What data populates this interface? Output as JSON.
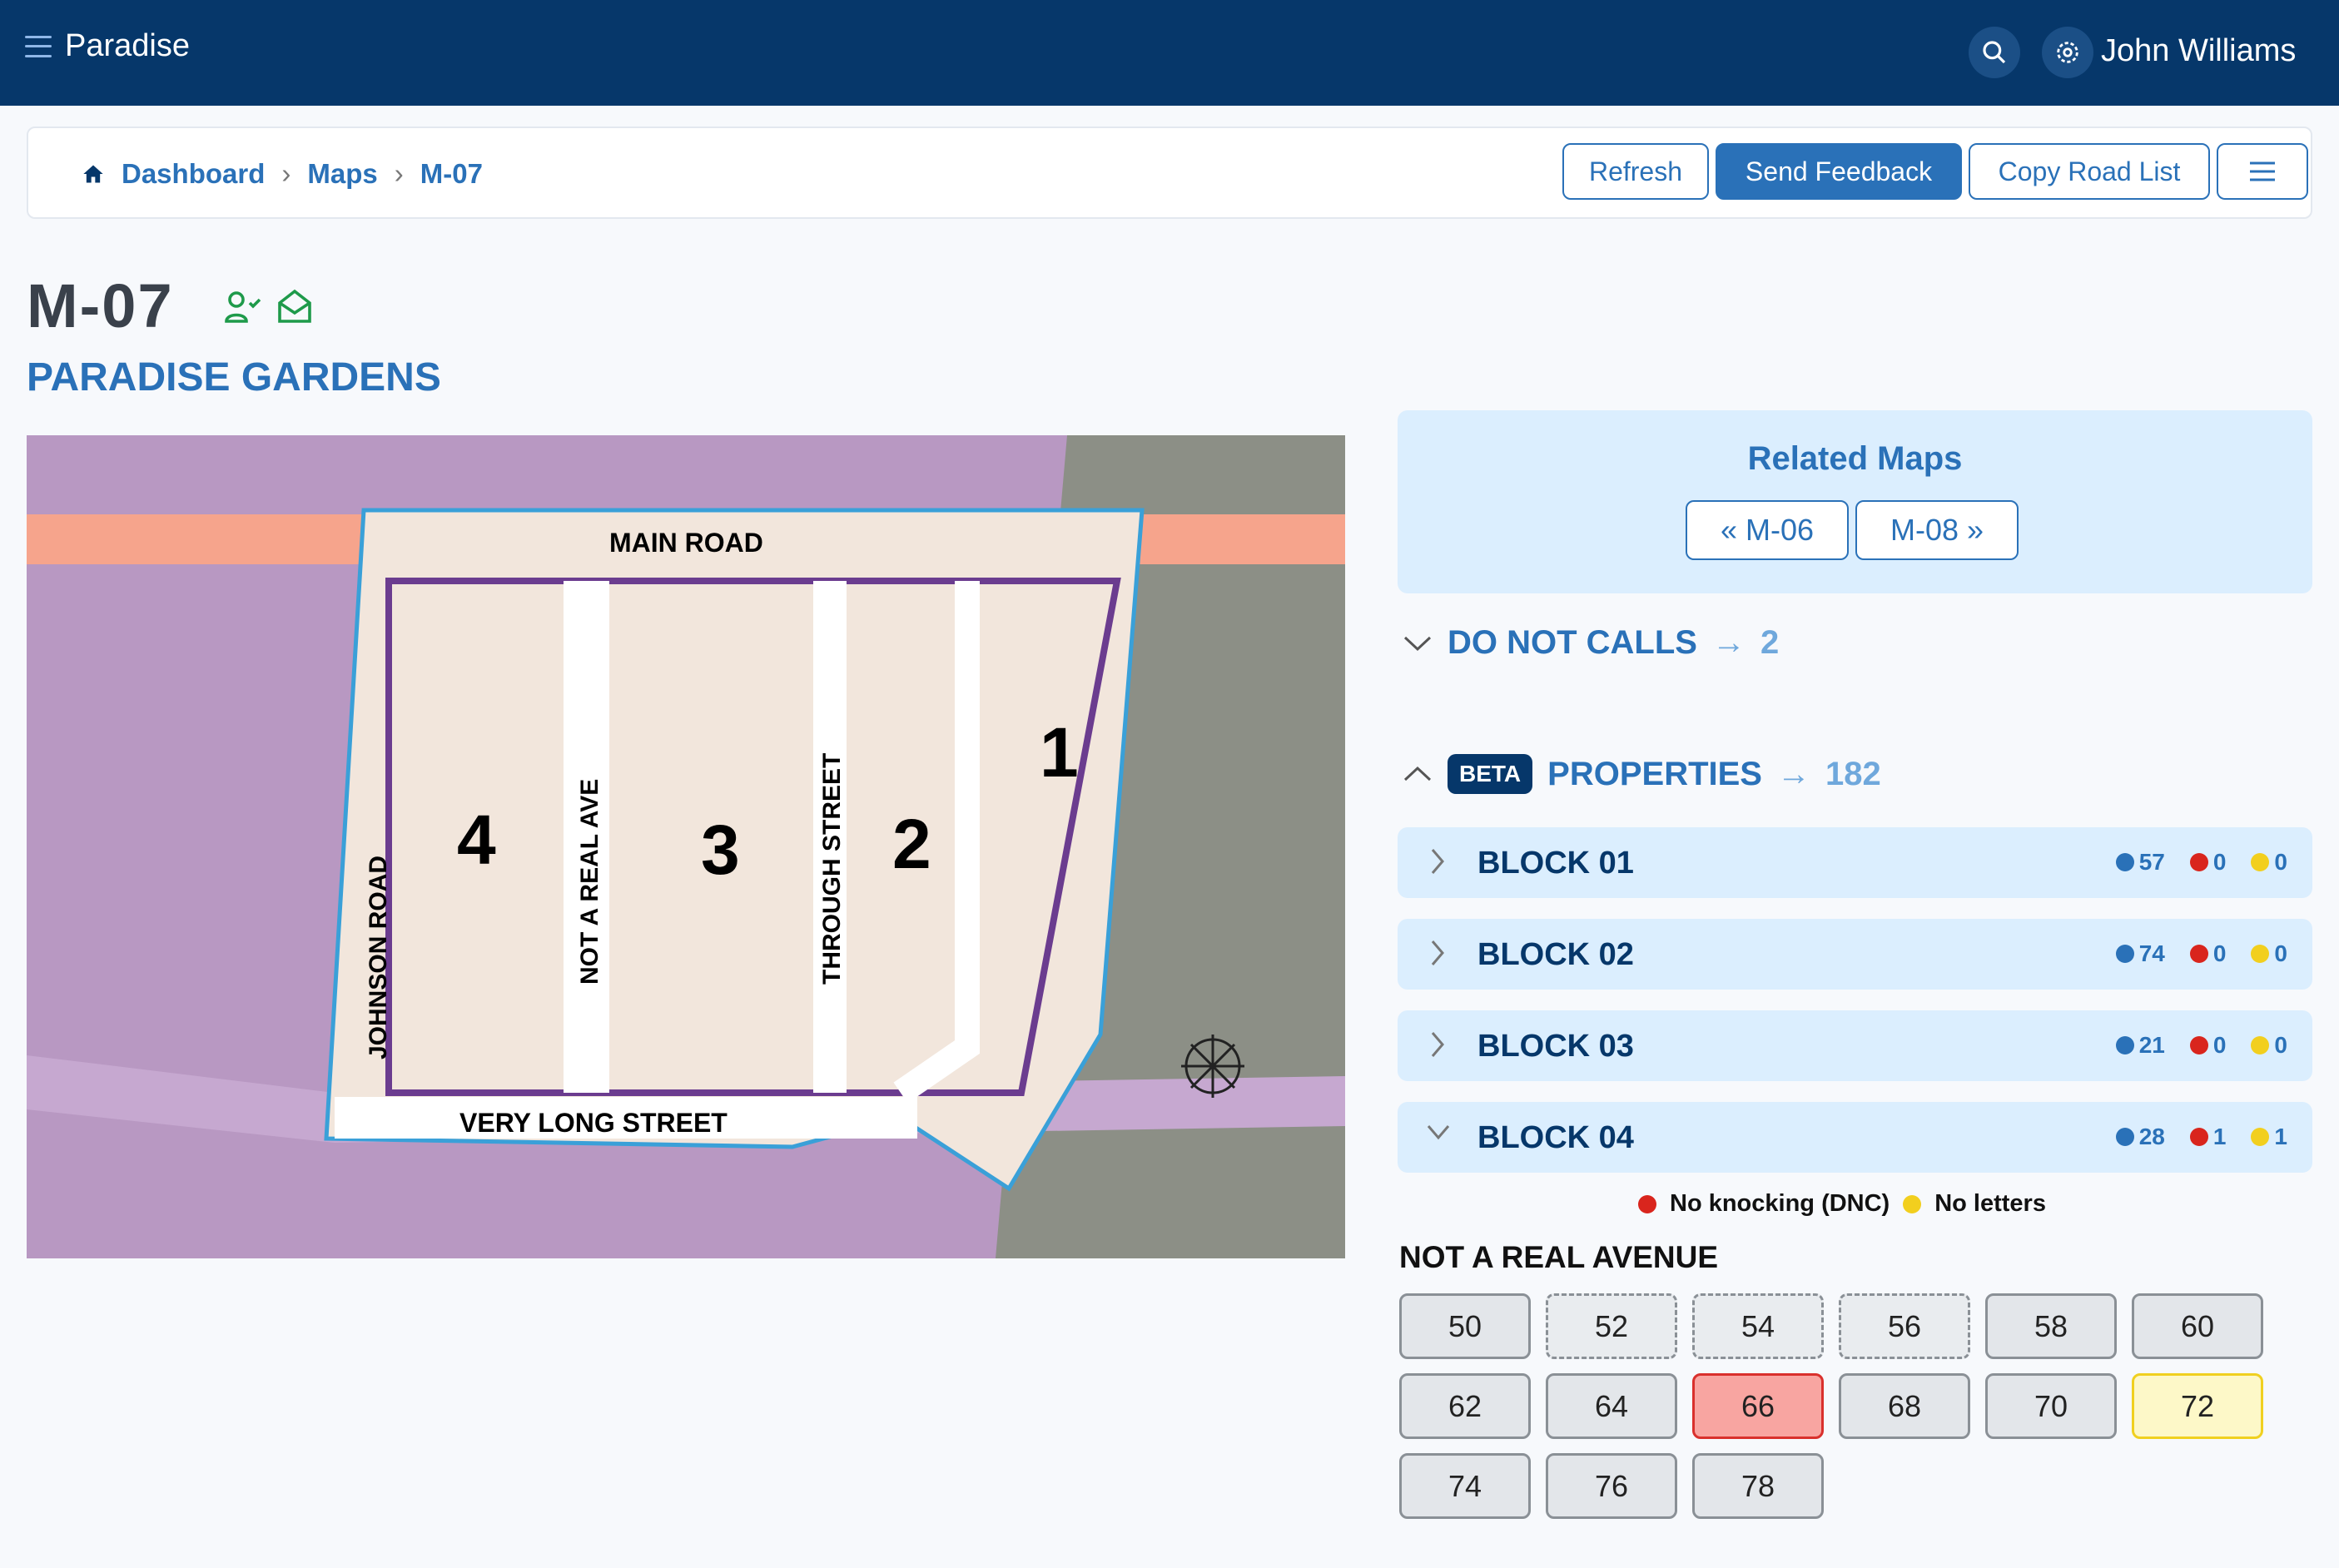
{
  "header": {
    "app_name": "Paradise",
    "user_name": "John Williams"
  },
  "breadcrumb": [
    "Dashboard",
    "Maps",
    "M-07"
  ],
  "toolbar": {
    "refresh": "Refresh",
    "send_feedback": "Send Feedback",
    "copy_road_list": "Copy Road List"
  },
  "page": {
    "title": "M-07",
    "subtitle": "PARADISE GARDENS"
  },
  "map": {
    "labels": {
      "main_road": "MAIN ROAD",
      "johnson": "JOHNSON ROAD",
      "not_real": "NOT A REAL AVE",
      "through": "THROUGH STREET",
      "very_long": "VERY LONG STREET"
    },
    "blocks": [
      "1",
      "2",
      "3",
      "4"
    ]
  },
  "related": {
    "title": "Related Maps",
    "prev": "M-06",
    "next": "M-08"
  },
  "do_not_calls": {
    "label": "DO NOT CALLS",
    "count": "2",
    "expanded": false
  },
  "properties": {
    "badge": "BETA",
    "label": "PROPERTIES",
    "count": "182",
    "expanded": true
  },
  "status_colors": {
    "blue": "#2a71b8",
    "red": "#d9251d",
    "yellow": "#f2cf1e"
  },
  "blocks": [
    {
      "label": "BLOCK 01",
      "blue": "57",
      "red": "0",
      "yellow": "0",
      "expanded": false
    },
    {
      "label": "BLOCK 02",
      "blue": "74",
      "red": "0",
      "yellow": "0",
      "expanded": false
    },
    {
      "label": "BLOCK 03",
      "blue": "21",
      "red": "0",
      "yellow": "0",
      "expanded": false
    },
    {
      "label": "BLOCK 04",
      "blue": "28",
      "red": "1",
      "yellow": "1",
      "expanded": true
    }
  ],
  "legend": {
    "red": "No knocking (DNC)",
    "yellow": "No letters"
  },
  "street": {
    "name": "NOT A REAL AVENUE",
    "houses": [
      {
        "n": "50",
        "s": "normal"
      },
      {
        "n": "52",
        "s": "dashed"
      },
      {
        "n": "54",
        "s": "dashed"
      },
      {
        "n": "56",
        "s": "dashed"
      },
      {
        "n": "58",
        "s": "normal"
      },
      {
        "n": "60",
        "s": "normal"
      },
      {
        "n": "62",
        "s": "normal"
      },
      {
        "n": "64",
        "s": "normal"
      },
      {
        "n": "66",
        "s": "dnc"
      },
      {
        "n": "68",
        "s": "normal"
      },
      {
        "n": "70",
        "s": "normal"
      },
      {
        "n": "72",
        "s": "no-letters"
      },
      {
        "n": "74",
        "s": "normal"
      },
      {
        "n": "76",
        "s": "normal"
      },
      {
        "n": "78",
        "s": "normal"
      }
    ]
  }
}
